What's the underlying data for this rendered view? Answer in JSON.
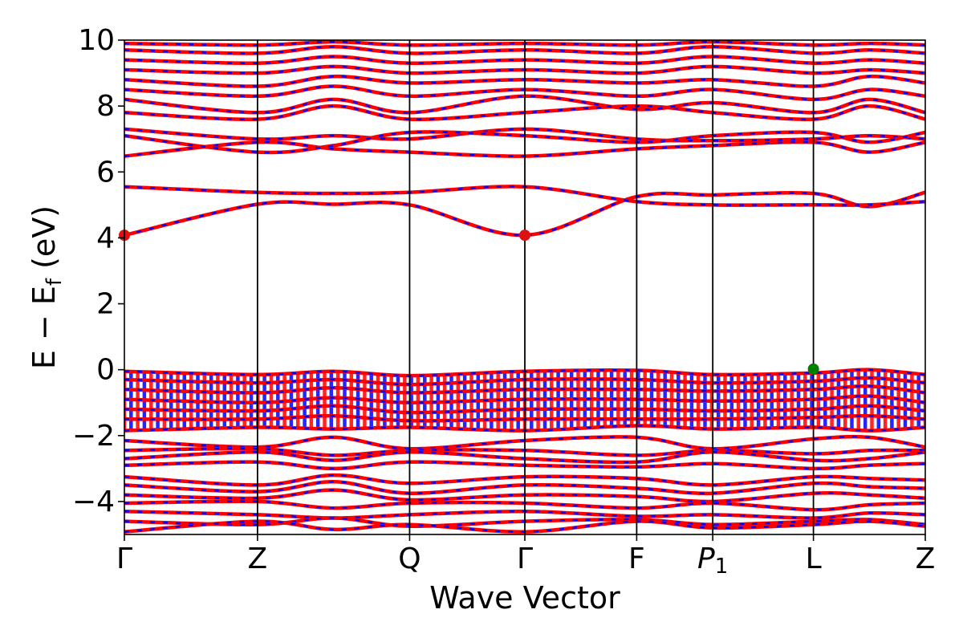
{
  "chart_data": {
    "type": "line",
    "xlabel": "Wave Vector",
    "ylabel": "E − E_f (eV)",
    "ylabel_main": "E − E",
    "ylabel_sub": "f",
    "ylabel_unit": " (eV)",
    "ylim": [
      -5,
      10
    ],
    "yticks": [
      -4,
      -2,
      0,
      2,
      4,
      6,
      8,
      10
    ],
    "ytick_labels": [
      "−4",
      "−2",
      "0",
      "2",
      "4",
      "6",
      "8",
      "10"
    ],
    "xlim": [
      0,
      7.16
    ],
    "kpoints": [
      {
        "label": "Γ",
        "x": 0
      },
      {
        "label": "Z",
        "x": 1.19
      },
      {
        "label": "Q",
        "x": 2.55
      },
      {
        "label": "Γ",
        "x": 3.58
      },
      {
        "label": "F",
        "x": 4.58
      },
      {
        "label": "P",
        "sub": "1",
        "x": 5.26
      },
      {
        "label": "L",
        "x": 6.16
      },
      {
        "label": "Z",
        "x": 7.16
      }
    ],
    "colors": {
      "spin_up": "#ff0000",
      "spin_down": "#0000ff",
      "kline": "#000000",
      "cbm": "#dd1111",
      "vbm": "#008000"
    },
    "conduction_bands": [
      {
        "values": [
          4.08,
          5.02,
          5.02,
          5.0,
          4.08,
          5.25,
          5.3,
          5.35,
          4.95,
          5.38
        ]
      },
      {
        "values": [
          5.55,
          5.38,
          5.35,
          5.38,
          5.55,
          5.1,
          5.0,
          5.0,
          5.0,
          5.1
        ]
      },
      {
        "values": [
          6.48,
          6.9,
          6.7,
          6.6,
          6.48,
          6.7,
          6.8,
          6.9,
          6.6,
          6.9
        ]
      },
      {
        "values": [
          7.3,
          7.0,
          7.1,
          7.0,
          7.3,
          7.0,
          6.95,
          7.0,
          7.1,
          7.0
        ]
      },
      {
        "values": [
          7.1,
          6.6,
          6.8,
          7.2,
          7.1,
          6.9,
          7.1,
          7.2,
          6.9,
          7.2
        ]
      },
      {
        "values": [
          7.8,
          7.6,
          8.0,
          7.6,
          7.8,
          8.0,
          7.8,
          7.6,
          8.0,
          7.6
        ]
      },
      {
        "values": [
          8.2,
          7.8,
          8.2,
          7.8,
          8.3,
          7.9,
          8.1,
          7.8,
          8.2,
          7.8
        ]
      },
      {
        "values": [
          8.5,
          8.3,
          8.6,
          8.3,
          8.5,
          8.3,
          8.5,
          8.2,
          8.5,
          8.3
        ]
      },
      {
        "values": [
          8.8,
          8.6,
          8.9,
          8.7,
          8.8,
          8.7,
          8.8,
          8.6,
          8.9,
          8.7
        ]
      },
      {
        "values": [
          9.1,
          9.0,
          9.2,
          9.0,
          9.1,
          9.0,
          9.2,
          9.0,
          9.1,
          9.0
        ]
      },
      {
        "values": [
          9.4,
          9.3,
          9.5,
          9.3,
          9.4,
          9.3,
          9.5,
          9.3,
          9.4,
          9.3
        ]
      },
      {
        "values": [
          9.7,
          9.6,
          9.8,
          9.6,
          9.7,
          9.6,
          9.8,
          9.6,
          9.7,
          9.6
        ]
      },
      {
        "values": [
          9.9,
          9.85,
          9.95,
          9.85,
          9.9,
          9.85,
          9.95,
          9.85,
          9.9,
          9.85
        ]
      }
    ],
    "valence_bands": [
      {
        "values": [
          -0.05,
          -0.15,
          -0.05,
          -0.18,
          -0.05,
          -0.02,
          -0.15,
          -0.1,
          0.0,
          -0.15
        ]
      },
      {
        "values": [
          -0.3,
          -0.4,
          -0.3,
          -0.45,
          -0.3,
          -0.3,
          -0.4,
          -0.35,
          -0.25,
          -0.4
        ]
      },
      {
        "values": [
          -0.6,
          -0.7,
          -0.55,
          -0.7,
          -0.6,
          -0.6,
          -0.65,
          -0.6,
          -0.5,
          -0.7
        ]
      },
      {
        "values": [
          -0.9,
          -1.0,
          -0.85,
          -1.0,
          -0.9,
          -0.9,
          -0.95,
          -0.9,
          -0.8,
          -1.0
        ]
      },
      {
        "values": [
          -1.2,
          -1.25,
          -1.1,
          -1.3,
          -1.2,
          -1.2,
          -1.25,
          -1.2,
          -1.1,
          -1.25
        ]
      },
      {
        "values": [
          -1.5,
          -1.5,
          -1.4,
          -1.55,
          -1.5,
          -1.5,
          -1.5,
          -1.45,
          -1.4,
          -1.5
        ]
      },
      {
        "values": [
          -1.85,
          -1.75,
          -1.8,
          -1.75,
          -1.85,
          -1.7,
          -1.8,
          -1.75,
          -1.85,
          -1.75
        ]
      },
      {
        "values": [
          -2.15,
          -2.35,
          -2.05,
          -2.4,
          -2.15,
          -2.05,
          -2.4,
          -2.1,
          -2.05,
          -2.35
        ]
      },
      {
        "values": [
          -2.45,
          -2.4,
          -2.6,
          -2.45,
          -2.45,
          -2.6,
          -2.45,
          -2.55,
          -2.45,
          -2.45
        ]
      },
      {
        "values": [
          -2.7,
          -2.5,
          -2.75,
          -2.5,
          -2.7,
          -2.8,
          -2.5,
          -2.75,
          -2.7,
          -2.5
        ]
      },
      {
        "values": [
          -2.9,
          -2.8,
          -3.0,
          -2.8,
          -2.9,
          -2.95,
          -2.85,
          -3.0,
          -2.9,
          -2.85
        ]
      },
      {
        "values": [
          -3.25,
          -3.5,
          -3.2,
          -3.45,
          -3.25,
          -3.3,
          -3.5,
          -3.25,
          -3.3,
          -3.35
        ]
      },
      {
        "values": [
          -3.5,
          -3.7,
          -3.4,
          -3.75,
          -3.5,
          -3.6,
          -3.75,
          -3.45,
          -3.55,
          -3.6
        ]
      },
      {
        "values": [
          -3.8,
          -3.9,
          -3.65,
          -3.95,
          -3.8,
          -3.85,
          -4.0,
          -3.75,
          -3.8,
          -3.9
        ]
      },
      {
        "values": [
          -4.05,
          -4.0,
          -4.2,
          -4.05,
          -4.05,
          -4.2,
          -4.05,
          -4.25,
          -4.1,
          -4.05
        ]
      },
      {
        "values": [
          -4.3,
          -4.4,
          -4.5,
          -4.4,
          -4.3,
          -4.45,
          -4.4,
          -4.5,
          -4.35,
          -4.4
        ]
      },
      {
        "values": [
          -4.6,
          -4.7,
          -4.5,
          -4.75,
          -4.6,
          -4.55,
          -4.7,
          -4.6,
          -4.55,
          -4.7
        ]
      },
      {
        "values": [
          -4.92,
          -4.6,
          -4.85,
          -4.7,
          -4.92,
          -4.6,
          -4.8,
          -4.7,
          -4.6,
          -4.75
        ]
      }
    ],
    "cbm_points": [
      {
        "x": 0.0,
        "y": 4.08
      },
      {
        "x": 3.58,
        "y": 4.08
      }
    ],
    "vbm_points": [
      {
        "x": 6.16,
        "y": 0.02
      }
    ]
  }
}
